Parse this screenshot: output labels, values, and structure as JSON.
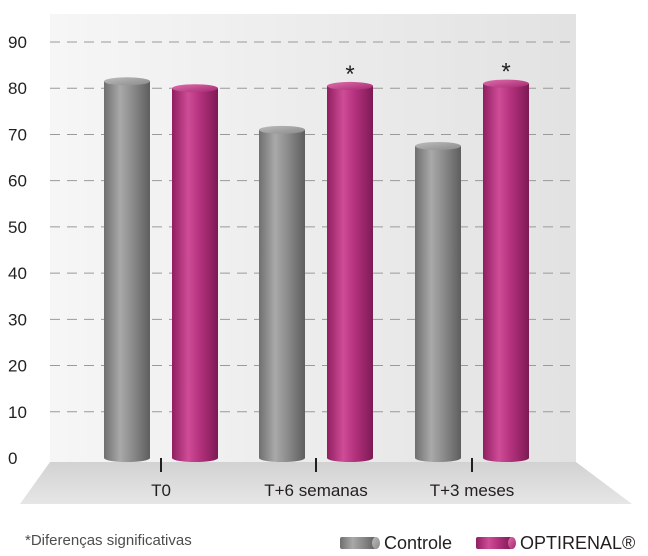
{
  "chart_data": {
    "type": "bar",
    "categories": [
      "T0",
      "T+6 semanas",
      "T+3 meses"
    ],
    "series": [
      {
        "name": "Controle",
        "values": [
          81.5,
          71,
          67.5
        ],
        "color": "#8c8c8c"
      },
      {
        "name": "OPTIRENAL®",
        "values": [
          80,
          80.5,
          81
        ],
        "color": "#b5327e"
      }
    ],
    "significance": [
      {
        "category": "T+6 semanas",
        "series": "OPTIRENAL®",
        "marker": "*"
      },
      {
        "category": "T+3 meses",
        "series": "OPTIRENAL®",
        "marker": "*"
      }
    ],
    "ylim": [
      0,
      90
    ],
    "yticks": [
      "0",
      "10",
      "20",
      "30",
      "40",
      "50",
      "60",
      "70",
      "80",
      "90"
    ],
    "grid": "dashed horizontal",
    "legend_position": "bottom-right",
    "footnote": "*Diferenças significativas",
    "style": "3d-cylinder"
  }
}
